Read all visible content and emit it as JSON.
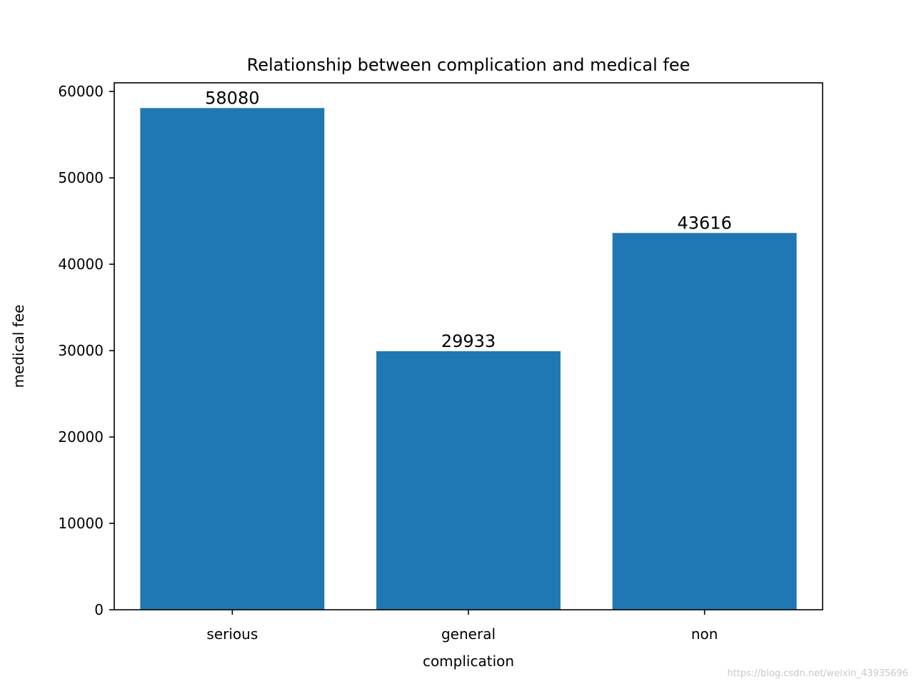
{
  "chart_data": {
    "type": "bar",
    "title": "Relationship between complication and medical fee",
    "xlabel": "complication",
    "ylabel": "medical fee",
    "categories": [
      "serious",
      "general",
      "non"
    ],
    "values": [
      58080,
      29933,
      43616
    ],
    "value_labels": [
      "58080",
      "29933",
      "43616"
    ],
    "ylim": [
      0,
      61000
    ],
    "yticks": [
      0,
      10000,
      20000,
      30000,
      40000,
      50000,
      60000
    ],
    "ytick_labels": [
      "0",
      "10000",
      "20000",
      "30000",
      "40000",
      "50000",
      "60000"
    ],
    "bar_color": "#1f77b4",
    "grid": false,
    "legend": "none"
  },
  "watermark": "https://blog.csdn.net/weixin_43935696"
}
